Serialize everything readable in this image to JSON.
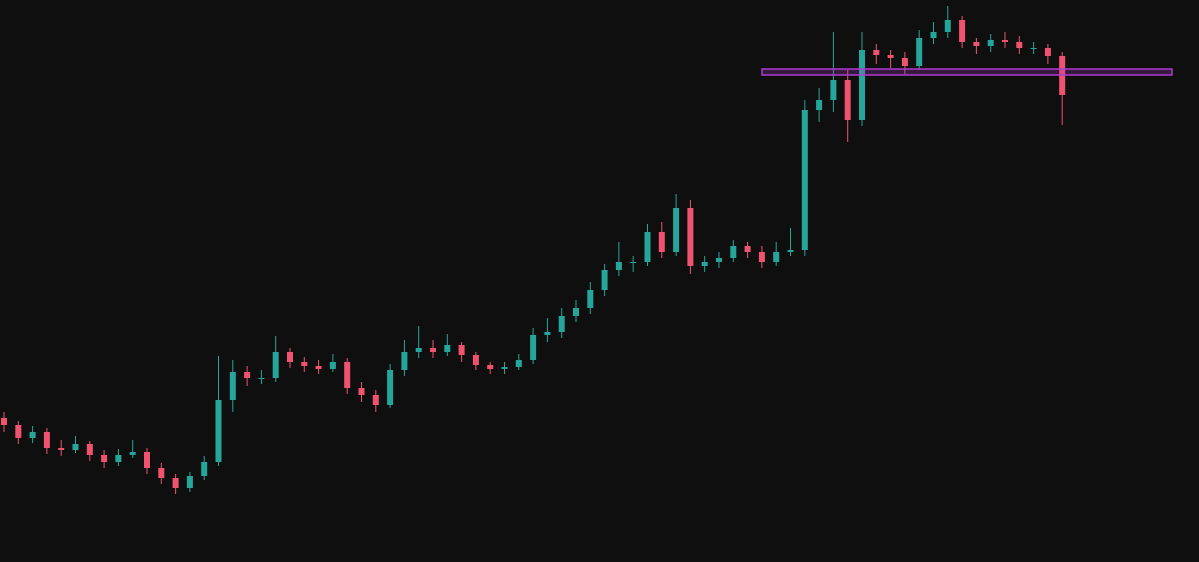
{
  "chart_data": {
    "type": "candlestick",
    "up_color": "#26a69a",
    "down_color": "#ef5370",
    "ylim": [
      0,
      562
    ],
    "grid": false,
    "zone": {
      "low": 487,
      "high": 493,
      "color": "#b03ad0"
    },
    "open": [
      144,
      137,
      124,
      130,
      114,
      112,
      118,
      107,
      100,
      107,
      110,
      94,
      84,
      74,
      86,
      100,
      162,
      190,
      184,
      184,
      210,
      200,
      196,
      193,
      200,
      174,
      167,
      157,
      192,
      210,
      214,
      210,
      217,
      207,
      197,
      193,
      195,
      202,
      227,
      230,
      246,
      254,
      272,
      292,
      300,
      300,
      330,
      310,
      354,
      296,
      300,
      304,
      316,
      310,
      300,
      310,
      312,
      452,
      462,
      482,
      442,
      512,
      507,
      504,
      496,
      524,
      530,
      542,
      520,
      516,
      522,
      520,
      514,
      514,
      506
    ],
    "high": [
      150,
      141,
      136,
      134,
      122,
      126,
      121,
      112,
      113,
      122,
      114,
      99,
      88,
      90,
      106,
      206,
      202,
      196,
      192,
      226,
      214,
      205,
      202,
      208,
      204,
      180,
      172,
      198,
      222,
      236,
      222,
      228,
      220,
      210,
      200,
      200,
      208,
      234,
      244,
      254,
      262,
      280,
      298,
      320,
      306,
      338,
      340,
      368,
      362,
      306,
      310,
      322,
      320,
      316,
      320,
      334,
      462,
      474,
      530,
      492,
      530,
      518,
      512,
      510,
      532,
      540,
      556,
      546,
      524,
      528,
      530,
      526,
      520,
      518,
      510
    ],
    "low": [
      130,
      118,
      119,
      108,
      106,
      109,
      101,
      94,
      96,
      104,
      88,
      78,
      68,
      70,
      82,
      96,
      150,
      176,
      178,
      180,
      194,
      190,
      188,
      190,
      168,
      160,
      150,
      154,
      186,
      204,
      204,
      206,
      200,
      192,
      188,
      188,
      192,
      198,
      220,
      224,
      240,
      248,
      266,
      286,
      290,
      296,
      304,
      306,
      288,
      290,
      294,
      300,
      304,
      294,
      296,
      306,
      306,
      440,
      450,
      420,
      436,
      498,
      494,
      488,
      492,
      518,
      524,
      514,
      508,
      510,
      514,
      508,
      508,
      498,
      437
    ],
    "close": [
      137,
      124,
      130,
      114,
      112,
      118,
      107,
      100,
      107,
      110,
      94,
      84,
      74,
      86,
      100,
      162,
      190,
      184,
      184,
      210,
      200,
      196,
      193,
      200,
      174,
      167,
      157,
      192,
      210,
      214,
      210,
      217,
      207,
      197,
      193,
      195,
      202,
      227,
      230,
      246,
      254,
      272,
      292,
      300,
      300,
      330,
      310,
      354,
      296,
      300,
      304,
      316,
      310,
      300,
      310,
      312,
      452,
      462,
      482,
      442,
      512,
      507,
      504,
      496,
      524,
      530,
      542,
      520,
      516,
      522,
      520,
      514,
      514,
      506,
      467
    ]
  }
}
